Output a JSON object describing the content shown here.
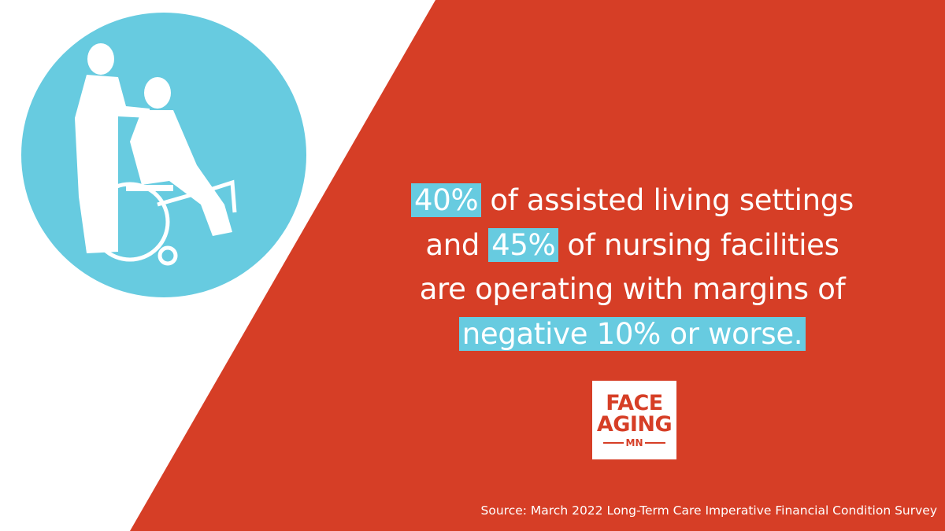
{
  "statement": {
    "line1": {
      "highlight": "40%",
      "text": "of assisted living settings"
    },
    "line2": {
      "lead": "and",
      "highlight": "45%",
      "text": "of nursing facilities"
    },
    "line3": {
      "text": "are operating with margins of"
    },
    "line4": {
      "highlight": "negative 10% or worse."
    }
  },
  "logo": {
    "line1": "FACE",
    "line2": "AGING",
    "line3": "MN"
  },
  "source": "Source: March 2022 Long-Term Care Imperative Financial Condition Survey"
}
